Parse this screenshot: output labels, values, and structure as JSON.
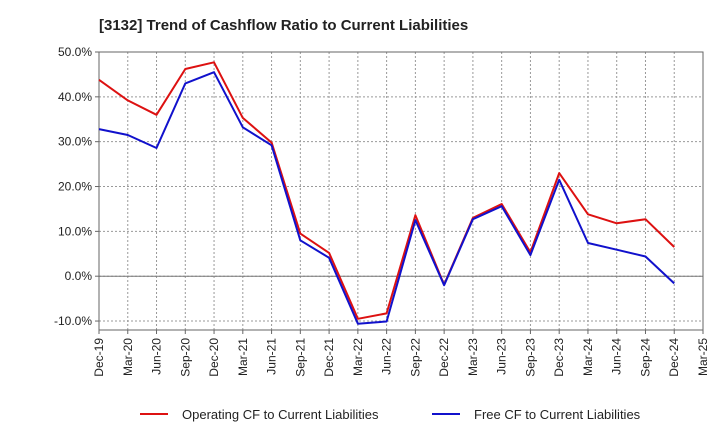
{
  "chart_data": {
    "type": "line",
    "title": "[3132]  Trend of Cashflow Ratio to Current Liabilities",
    "xlabel": "",
    "ylabel": "",
    "x": [
      "Dec-19",
      "Mar-20",
      "Jun-20",
      "Sep-20",
      "Dec-20",
      "Mar-21",
      "Jun-21",
      "Sep-21",
      "Dec-21",
      "Mar-22",
      "Jun-22",
      "Sep-22",
      "Dec-22",
      "Mar-23",
      "Jun-23",
      "Sep-23",
      "Dec-23",
      "Mar-24",
      "Jun-24",
      "Sep-24",
      "Dec-24",
      "Mar-25"
    ],
    "ylim": [
      -12,
      50
    ],
    "yticks": [
      -10,
      0,
      10,
      20,
      30,
      40,
      50
    ],
    "ytick_labels": [
      "-10.0%",
      "0.0%",
      "10.0%",
      "20.0%",
      "30.0%",
      "40.0%",
      "50.0%"
    ],
    "grid": true,
    "legend": "bottom",
    "series": [
      {
        "name": "Operating CF to Current Liabilities",
        "color": "#dd1111",
        "values": [
          43.8,
          39.2,
          36.0,
          46.2,
          47.7,
          35.3,
          29.8,
          9.5,
          5.2,
          -9.5,
          -8.3,
          13.6,
          -1.9,
          13.0,
          16.1,
          5.3,
          23.0,
          13.8,
          11.8,
          12.7,
          6.5,
          null
        ]
      },
      {
        "name": "Free CF to Current Liabilities",
        "color": "#1111cc",
        "values": [
          32.8,
          31.5,
          28.6,
          43.0,
          45.5,
          33.2,
          29.2,
          8.0,
          4.1,
          -10.6,
          -10.1,
          12.5,
          -2.0,
          12.7,
          15.6,
          4.7,
          21.5,
          7.4,
          5.9,
          4.4,
          -1.6,
          null
        ]
      }
    ]
  }
}
